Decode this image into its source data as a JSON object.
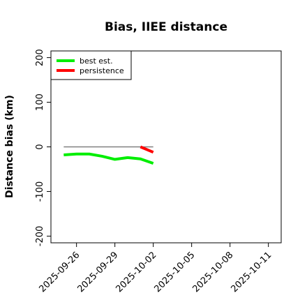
{
  "chart_data": {
    "type": "line",
    "title": "Bias, IIEE distance",
    "xlabel": "",
    "ylabel": "Distance bias (km)",
    "xlim": [
      "2025-09-24",
      "2025-10-12"
    ],
    "ylim": [
      -215,
      215
    ],
    "x_ticks": [
      "2025-09-26",
      "2025-09-29",
      "2025-10-02",
      "2025-10-05",
      "2025-10-08",
      "2025-10-11"
    ],
    "y_ticks": [
      -200,
      -100,
      0,
      100,
      200
    ],
    "legend_position": "top-left",
    "reference_line": {
      "y": 0,
      "from": "2025-09-25",
      "to": "2025-10-02",
      "color": "#808080"
    },
    "series": [
      {
        "name": "best est.",
        "color": "#00ee00",
        "points": [
          {
            "x": "2025-09-25",
            "y": -18
          },
          {
            "x": "2025-09-26",
            "y": -16
          },
          {
            "x": "2025-09-27",
            "y": -16
          },
          {
            "x": "2025-09-28",
            "y": -21
          },
          {
            "x": "2025-09-29",
            "y": -28
          },
          {
            "x": "2025-09-30",
            "y": -24
          },
          {
            "x": "2025-10-01",
            "y": -27
          },
          {
            "x": "2025-10-02",
            "y": -37
          }
        ]
      },
      {
        "name": "persistence",
        "color": "#ff0000",
        "points": [
          {
            "x": "2025-10-01",
            "y": 0
          },
          {
            "x": "2025-10-02",
            "y": -12
          }
        ]
      }
    ]
  }
}
